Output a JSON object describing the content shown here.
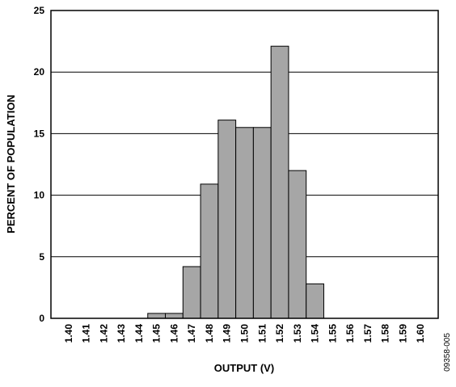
{
  "chart_data": {
    "type": "bar",
    "xlabel": "OUTPUT (V)",
    "ylabel": "PERCENT OF POPULATION",
    "ylim": [
      0,
      25
    ],
    "yticks": [
      "0",
      "5",
      "10",
      "15",
      "20",
      "25"
    ],
    "categories": [
      "1.40",
      "1.41",
      "1.42",
      "1.43",
      "1.44",
      "1.45",
      "1.46",
      "1.47",
      "1.48",
      "1.49",
      "1.50",
      "1.51",
      "1.52",
      "1.53",
      "1.54",
      "1.55",
      "1.56",
      "1.57",
      "1.58",
      "1.59",
      "1.60"
    ],
    "values": [
      0,
      0,
      0,
      0,
      0,
      0.4,
      0.4,
      4.2,
      10.9,
      16.1,
      15.5,
      15.5,
      22.1,
      12.0,
      2.8,
      0,
      0,
      0,
      0,
      0,
      0
    ],
    "grid": true,
    "bar_color": "#a6a6a6"
  },
  "figure_id": "09358-005"
}
